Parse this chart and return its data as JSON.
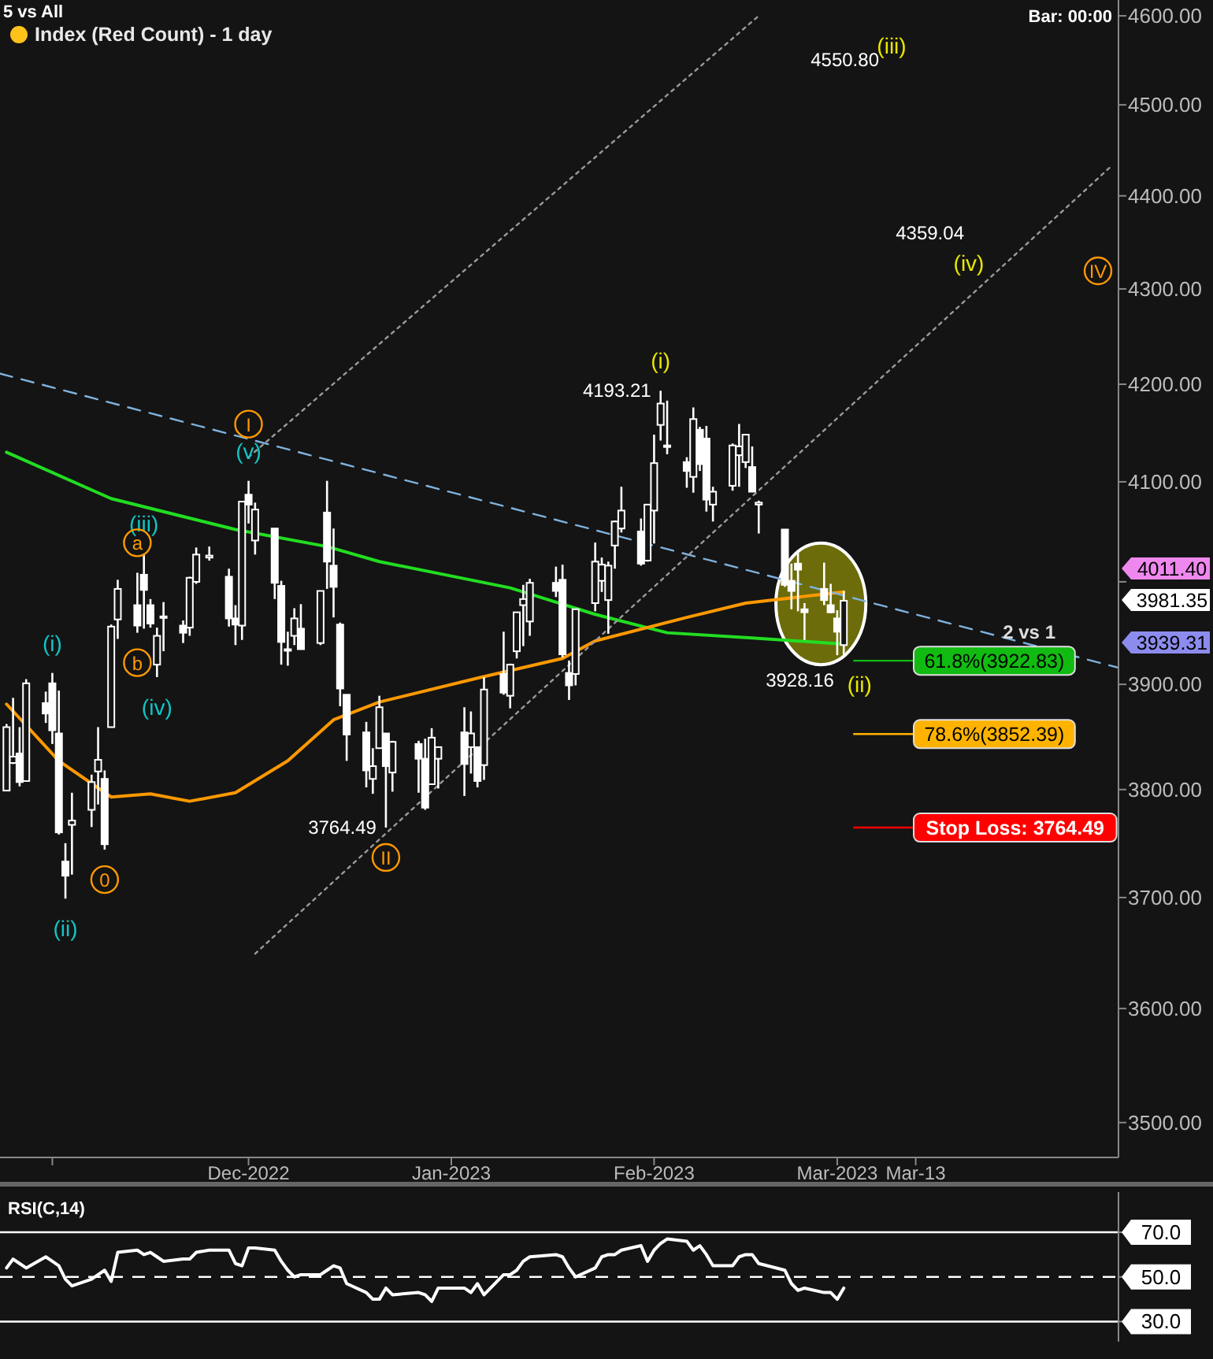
{
  "chart_data": [
    {
      "type": "candlestick",
      "title": "Index (Red Count) - 1 day",
      "log": true,
      "grid": false,
      "xlim": [
        "2022-10-24",
        "2023-04-13"
      ],
      "xticks": [
        {
          "value": "2022-11-01",
          "label": null
        },
        {
          "value": "2022-12-01",
          "label": "Dec-2022"
        },
        {
          "value": "2023-01-01",
          "label": "Jan-2023"
        },
        {
          "value": "2023-02-01",
          "label": "Feb-2023"
        },
        {
          "value": "2023-03-01",
          "label": "Mar-2023"
        },
        {
          "value": "2023-03-13",
          "label": "Mar-13"
        }
      ],
      "ylim": [
        3470,
        4618
      ],
      "yticks": [
        {
          "value": 3500,
          "label": "3500.00"
        },
        {
          "value": 3600,
          "label": "3600.00"
        },
        {
          "value": 3700,
          "label": "3700.00"
        },
        {
          "value": 3800,
          "label": "3800.00"
        },
        {
          "value": 3900,
          "label": "3900.00"
        },
        {
          "value": 4000,
          "label": null
        },
        {
          "value": 4100,
          "label": "4100.00"
        },
        {
          "value": 4200,
          "label": "4200.00"
        },
        {
          "value": 4300,
          "label": "4300.00"
        },
        {
          "value": 4400,
          "label": "4400.00"
        },
        {
          "value": 4500,
          "label": "4500.00"
        },
        {
          "value": 4600,
          "label": "4600.00"
        }
      ],
      "x": [
        "2022-10-25",
        "2022-10-26",
        "2022-10-27",
        "2022-10-28",
        "2022-10-31",
        "2022-11-01",
        "2022-11-02",
        "2022-11-03",
        "2022-11-04",
        "2022-11-07",
        "2022-11-08",
        "2022-11-09",
        "2022-11-10",
        "2022-11-11",
        "2022-11-14",
        "2022-11-15",
        "2022-11-16",
        "2022-11-17",
        "2022-11-18",
        "2022-11-21",
        "2022-11-22",
        "2022-11-23",
        "2022-11-25",
        "2022-11-28",
        "2022-11-29",
        "2022-11-30",
        "2022-12-01",
        "2022-12-02",
        "2022-12-05",
        "2022-12-06",
        "2022-12-07",
        "2022-12-08",
        "2022-12-09",
        "2022-12-12",
        "2022-12-13",
        "2022-12-14",
        "2022-12-15",
        "2022-12-16",
        "2022-12-19",
        "2022-12-20",
        "2022-12-21",
        "2022-12-22",
        "2022-12-23",
        "2022-12-27",
        "2022-12-28",
        "2022-12-29",
        "2022-12-30",
        "2023-01-03",
        "2023-01-04",
        "2023-01-05",
        "2023-01-06",
        "2023-01-09",
        "2023-01-10",
        "2023-01-11",
        "2023-01-12",
        "2023-01-13",
        "2023-01-17",
        "2023-01-18",
        "2023-01-19",
        "2023-01-20",
        "2023-01-23",
        "2023-01-24",
        "2023-01-25",
        "2023-01-26",
        "2023-01-27",
        "2023-01-30",
        "2023-01-31",
        "2023-02-01",
        "2023-02-02",
        "2023-02-03",
        "2023-02-06",
        "2023-02-07",
        "2023-02-08",
        "2023-02-09",
        "2023-02-10",
        "2023-02-13",
        "2023-02-14",
        "2023-02-15",
        "2023-02-16",
        "2023-02-17",
        "2023-02-21",
        "2023-02-22",
        "2023-02-23",
        "2023-02-24",
        "2023-02-27",
        "2023-02-28",
        "2023-03-01",
        "2023-03-02"
      ],
      "ohlc": [
        [
          3799,
          3862,
          3799,
          3859
        ],
        [
          3825,
          3887,
          3824,
          3831
        ],
        [
          3834,
          3859,
          3803,
          3807
        ],
        [
          3808,
          3905,
          3808,
          3901
        ],
        [
          3882,
          3893,
          3863,
          3872
        ],
        [
          3901,
          3911,
          3843,
          3856
        ],
        [
          3853,
          3894,
          3758,
          3760
        ],
        [
          3733,
          3750,
          3699,
          3720
        ],
        [
          3767,
          3797,
          3721,
          3771
        ],
        [
          3781,
          3814,
          3765,
          3807
        ],
        [
          3817,
          3859,
          3786,
          3828
        ],
        [
          3810,
          3818,
          3744,
          3749
        ],
        [
          3859,
          3958,
          3859,
          3956
        ],
        [
          3963,
          4002,
          3944,
          3993
        ],
        [
          3977,
          4009,
          3950,
          3957
        ],
        [
          4007,
          4028,
          3954,
          3992
        ],
        [
          3977,
          3983,
          3955,
          3959
        ],
        [
          3919,
          3955,
          3907,
          3947
        ],
        [
          3966,
          3980,
          3932,
          3965
        ],
        [
          3957,
          3962,
          3940,
          3950
        ],
        [
          3955,
          4005,
          3947,
          4004
        ],
        [
          4000,
          4034,
          3998,
          4027
        ],
        [
          4024,
          4035,
          4021,
          4026
        ],
        [
          4005,
          4013,
          3956,
          3964
        ],
        [
          3964,
          3977,
          3938,
          3958
        ],
        [
          3957,
          4080,
          3943,
          4080
        ],
        [
          4087,
          4101,
          4058,
          4077
        ],
        [
          4041,
          4079,
          4027,
          4072
        ],
        [
          4053,
          4053,
          3983,
          3999
        ],
        [
          3996,
          4001,
          3919,
          3941
        ],
        [
          3934,
          3951,
          3918,
          3934
        ],
        [
          3947,
          3974,
          3938,
          3964
        ],
        [
          3954,
          3978,
          3934,
          3934
        ],
        [
          3940,
          3991,
          3938,
          3991
        ],
        [
          4069,
          4101,
          3993,
          4020
        ],
        [
          4016,
          4053,
          3965,
          3995
        ],
        [
          3958,
          3960,
          3879,
          3896
        ],
        [
          3890,
          3890,
          3827,
          3852
        ],
        [
          3854,
          3864,
          3802,
          3818
        ],
        [
          3810,
          3839,
          3796,
          3822
        ],
        [
          3839,
          3889,
          3839,
          3878
        ],
        [
          3853,
          3853,
          3764.49,
          3822
        ],
        [
          3816,
          3846,
          3798,
          3845
        ],
        [
          3843,
          3846,
          3797,
          3829
        ],
        [
          3829,
          3848,
          3781,
          3783
        ],
        [
          3805,
          3858,
          3805,
          3849
        ],
        [
          3829,
          3840,
          3801,
          3840
        ],
        [
          3854,
          3878,
          3794,
          3824
        ],
        [
          3840,
          3874,
          3815,
          3853
        ],
        [
          3840,
          3840,
          3802,
          3808
        ],
        [
          3823,
          3907,
          3809,
          3895
        ],
        [
          3910,
          3951,
          3890,
          3892
        ],
        [
          3889,
          3920,
          3877,
          3919
        ],
        [
          3932,
          3970,
          3925,
          3970
        ],
        [
          3977,
          3997,
          3937,
          3983
        ],
        [
          3961,
          4003,
          3947,
          3999
        ],
        [
          3999,
          4015,
          3985,
          3991
        ],
        [
          4002,
          4017,
          3926,
          3929
        ],
        [
          3911,
          3923,
          3885,
          3899
        ],
        [
          3910,
          3973,
          3899,
          3973
        ],
        [
          3979,
          4039,
          3971,
          4020
        ],
        [
          4001,
          4024,
          3990,
          4017
        ],
        [
          3982,
          4020,
          3949,
          4016
        ],
        [
          4036,
          4061,
          4013,
          4060
        ],
        [
          4053,
          4095,
          4049,
          4071
        ],
        [
          4050,
          4063,
          4016,
          4018
        ],
        [
          4021,
          4077,
          4020,
          4077
        ],
        [
          4071,
          4148,
          4038,
          4119
        ],
        [
          4158,
          4193.21,
          4142,
          4180
        ],
        [
          4137,
          4183,
          4128,
          4136
        ],
        [
          4120,
          4125,
          4094,
          4111
        ],
        [
          4105,
          4176,
          4089,
          4164
        ],
        [
          4153,
          4156,
          4111,
          4118
        ],
        [
          4144,
          4157,
          4070,
          4082
        ],
        [
          4077,
          4095,
          4060,
          4090
        ],
        [
          4096,
          4139,
          4091,
          4137
        ],
        [
          4127,
          4159,
          4095,
          4136
        ],
        [
          4120,
          4148,
          4114,
          4148
        ],
        [
          4115,
          4136,
          4090,
          4090
        ],
        [
          4077,
          4081,
          4048,
          4079
        ],
        [
          4052,
          4052,
          3995,
          3997
        ],
        [
          4001,
          4018,
          3973,
          3991
        ],
        [
          4018,
          4029,
          3971,
          4012
        ],
        [
          3973,
          3979,
          3943,
          3970
        ],
        [
          3993,
          4019,
          3977,
          3982
        ],
        [
          3977,
          3998,
          3969,
          3970
        ],
        [
          3964,
          3972,
          3928.16,
          3951
        ],
        [
          3938,
          3991,
          3929,
          3981.35
        ]
      ],
      "series": [
        {
          "type": "line",
          "color": "#22dd22",
          "line_style": "solid",
          "x": [
            "2022-10-25",
            "2022-11-10",
            "2022-11-29",
            "2022-12-13",
            "2022-12-21",
            "2023-01-10",
            "2023-01-23",
            "2023-02-03",
            "2023-02-16",
            "2023-03-02"
          ],
          "values": [
            4130,
            4083,
            4052,
            4035,
            4020,
            3994,
            3968,
            3950,
            3945,
            3939
          ]
        },
        {
          "type": "line",
          "color": "#ff9900",
          "line_style": "solid",
          "x": [
            "2022-10-25",
            "2022-11-02",
            "2022-11-10",
            "2022-11-16",
            "2022-11-22",
            "2022-11-29",
            "2022-12-07",
            "2022-12-14",
            "2022-12-21",
            "2023-01-05",
            "2023-01-18",
            "2023-01-23",
            "2023-02-06",
            "2023-02-15",
            "2023-03-02"
          ],
          "values": [
            3881,
            3827,
            3793,
            3796,
            3789,
            3797,
            3827,
            3866,
            3883,
            3906,
            3925,
            3942,
            3965,
            3979,
            3990
          ]
        },
        {
          "type": "line",
          "color": "#7fb2dd",
          "line_style": "dashed",
          "x": [
            "2022-10-24",
            "2023-04-13"
          ],
          "values": [
            4211,
            3916
          ]
        },
        {
          "type": "line",
          "color": "#9a9a9a",
          "line_style": "dotted",
          "x": [
            "2022-12-01",
            "2023-02-17"
          ],
          "values": [
            4125,
            4600
          ]
        },
        {
          "type": "line",
          "color": "#9a9a9a",
          "line_style": "dotted",
          "x": [
            "2022-12-02",
            "2023-04-12"
          ],
          "values": [
            3649,
            4433
          ]
        }
      ],
      "ref_lines": [
        {
          "axis": "y",
          "value": 3922.83,
          "label": "61.8%(3922.83)",
          "color": "#11bb11"
        },
        {
          "axis": "y",
          "value": 3852.39,
          "label": "78.6%(3852.39)",
          "color": "#ffb300"
        },
        {
          "axis": "y",
          "value": 3764.49,
          "label": "Stop Loss: 3764.49",
          "color": "#ff0000"
        }
      ],
      "annotations": [
        "5 vs All",
        "Bar: 00:00",
        "2 vs 1",
        "4550.80",
        "(iii)",
        "4359.04",
        "(iv)",
        "IV",
        {
          "text": "4193.21",
          "x": "2023-02-02",
          "y": 4193.21
        },
        {
          "text": "3764.49",
          "x": "2022-12-22",
          "y": 3764.49
        },
        {
          "text": "3928.16",
          "x": "2023-03-01",
          "y": 3928.16
        },
        {
          "text": "(i)",
          "x": "2022-11-01",
          "y": 3911
        },
        {
          "text": "(ii)",
          "x": "2022-11-03",
          "y": 3699
        },
        {
          "text": "(iii)",
          "x": "2022-11-15",
          "y": 4028
        },
        {
          "text": "(iv)",
          "x": "2022-11-17",
          "y": 3907
        },
        {
          "text": "(v)",
          "x": "2022-12-01",
          "y": 4101
        },
        {
          "text": "I",
          "x": "2022-12-01",
          "y": 4101
        },
        {
          "text": "a",
          "x": "2022-11-14",
          "y": 4009
        },
        {
          "text": "b",
          "x": "2022-11-14",
          "y": 3950
        },
        {
          "text": "0",
          "x": "2022-11-09",
          "y": 3744
        },
        {
          "text": "II",
          "x": "2022-12-22",
          "y": 3764.49
        },
        {
          "text": "(i)",
          "x": "2023-02-02",
          "y": 4193.21
        },
        {
          "text": "(ii)",
          "x": "2023-03-02",
          "y": 3929
        },
        "4011.40",
        "3981.35",
        "3939.31"
      ]
    },
    {
      "type": "line",
      "title": "RSI(C,14)",
      "grid": false,
      "tick_labels": "y",
      "xlim": [
        "2022-10-24",
        "2023-04-13"
      ],
      "ylim": [
        21,
        88
      ],
      "yticks": [
        {
          "value": 30,
          "label": "30.0"
        },
        {
          "value": 50,
          "label": "50.0"
        },
        {
          "value": 70,
          "label": "70.0"
        }
      ],
      "x": [
        "2022-10-25",
        "2022-10-26",
        "2022-10-27",
        "2022-10-28",
        "2022-10-31",
        "2022-11-01",
        "2022-11-02",
        "2022-11-03",
        "2022-11-04",
        "2022-11-07",
        "2022-11-08",
        "2022-11-09",
        "2022-11-10",
        "2022-11-11",
        "2022-11-14",
        "2022-11-15",
        "2022-11-16",
        "2022-11-17",
        "2022-11-18",
        "2022-11-21",
        "2022-11-22",
        "2022-11-23",
        "2022-11-25",
        "2022-11-28",
        "2022-11-29",
        "2022-11-30",
        "2022-12-01",
        "2022-12-02",
        "2022-12-05",
        "2022-12-06",
        "2022-12-07",
        "2022-12-08",
        "2022-12-09",
        "2022-12-12",
        "2022-12-13",
        "2022-12-14",
        "2022-12-15",
        "2022-12-16",
        "2022-12-19",
        "2022-12-20",
        "2022-12-21",
        "2022-12-22",
        "2022-12-23",
        "2022-12-27",
        "2022-12-28",
        "2022-12-29",
        "2022-12-30",
        "2023-01-03",
        "2023-01-04",
        "2023-01-05",
        "2023-01-06",
        "2023-01-09",
        "2023-01-10",
        "2023-01-11",
        "2023-01-12",
        "2023-01-13",
        "2023-01-17",
        "2023-01-18",
        "2023-01-19",
        "2023-01-20",
        "2023-01-23",
        "2023-01-24",
        "2023-01-25",
        "2023-01-26",
        "2023-01-27",
        "2023-01-30",
        "2023-01-31",
        "2023-02-01",
        "2023-02-02",
        "2023-02-03",
        "2023-02-06",
        "2023-02-07",
        "2023-02-08",
        "2023-02-09",
        "2023-02-10",
        "2023-02-13",
        "2023-02-14",
        "2023-02-15",
        "2023-02-16",
        "2023-02-17",
        "2023-02-21",
        "2023-02-22",
        "2023-02-23",
        "2023-02-24",
        "2023-02-27",
        "2023-02-28",
        "2023-03-01",
        "2023-03-02"
      ],
      "series": [
        {
          "color": "#ffffff",
          "values": [
            54,
            58,
            56,
            54,
            59,
            57,
            55,
            49,
            46,
            49,
            51,
            53,
            48,
            61,
            62,
            60,
            61,
            59,
            57,
            58,
            58,
            61,
            62,
            62,
            56,
            55,
            63,
            63,
            62,
            57,
            53,
            50,
            51,
            51,
            53,
            55,
            54,
            47,
            43,
            40,
            40,
            45,
            42,
            43,
            42,
            39,
            45,
            45,
            43,
            47,
            42,
            51,
            51,
            53,
            57,
            59,
            60,
            59,
            54,
            50,
            54,
            59,
            60,
            60,
            62,
            64,
            57,
            62,
            65,
            67,
            66,
            62,
            64,
            60,
            55,
            55,
            59,
            60,
            60,
            56,
            53,
            47,
            44,
            45,
            43,
            43,
            40,
            45
          ]
        }
      ],
      "ref_lines": [
        {
          "axis": "y",
          "value": 70,
          "color": "#ffffff",
          "line_style": "solid"
        },
        {
          "axis": "y",
          "value": 50,
          "color": "#ffffff",
          "line_style": "dashed"
        },
        {
          "axis": "y",
          "value": 30,
          "color": "#ffffff",
          "line_style": "solid"
        }
      ]
    }
  ]
}
